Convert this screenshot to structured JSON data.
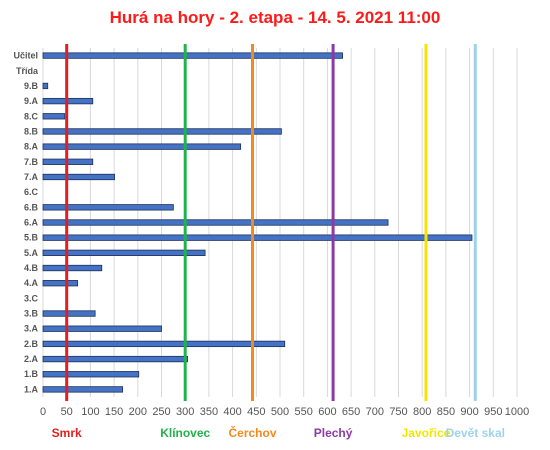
{
  "chart_data": {
    "type": "bar",
    "orientation": "horizontal",
    "title": "Hurá na hory - 2. etapa - 14. 5. 2021 11:00",
    "categories": [
      "Učitel",
      "Třída",
      "9.B",
      "9.A",
      "8.C",
      "8.B",
      "8.A",
      "7.B",
      "7.A",
      "6.C",
      "6.B",
      "6.A",
      "5.B",
      "5.A",
      "4.B",
      "4.A",
      "3.C",
      "3.B",
      "3.A",
      "2.B",
      "2.A",
      "1.B",
      "1.A"
    ],
    "values": [
      632,
      null,
      10,
      105,
      46,
      503,
      417,
      105,
      151,
      null,
      275,
      728,
      905,
      342,
      124,
      73,
      null,
      110,
      250,
      510,
      305,
      202,
      168
    ],
    "xlim": [
      0,
      1000
    ],
    "xticks": [
      0,
      50,
      100,
      150,
      200,
      250,
      300,
      350,
      400,
      450,
      500,
      550,
      600,
      650,
      700,
      750,
      800,
      850,
      900,
      950,
      1000
    ],
    "grid": true,
    "bar_color": "#4472c4",
    "reference_lines": [
      {
        "label": "Smrk",
        "x": 50,
        "color": "#e02020"
      },
      {
        "label": "Klínovec",
        "x": 300,
        "color": "#22b24c"
      },
      {
        "label": "Čerchov",
        "x": 442,
        "color": "#f28a1e"
      },
      {
        "label": "Plechý",
        "x": 612,
        "color": "#8e3aa6"
      },
      {
        "label": "Javořice",
        "x": 808,
        "color": "#f2e600"
      },
      {
        "label": "Devět skal",
        "x": 912,
        "color": "#9dd3ea"
      }
    ]
  }
}
